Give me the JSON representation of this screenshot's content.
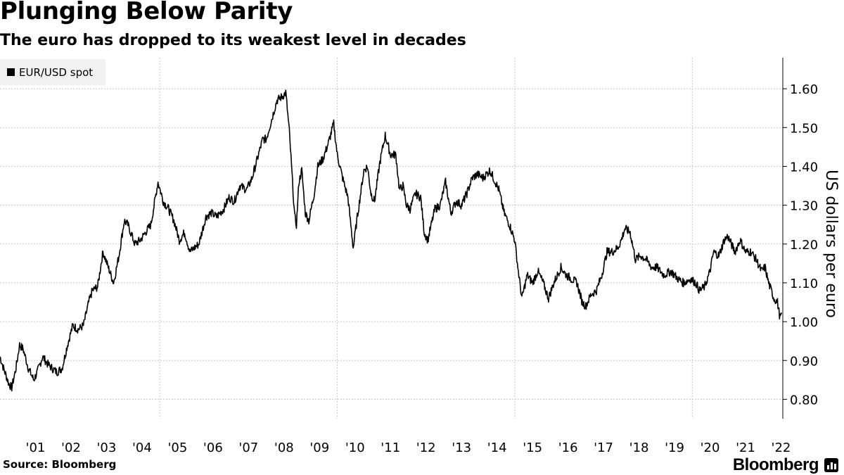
{
  "title": "Plunging Below Parity",
  "subtitle": "The euro has dropped to its weakest level in decades",
  "source": "Source: Bloomberg",
  "brand": "Bloomberg",
  "colors": {
    "line": "#000000",
    "grid": "#c8c8c8",
    "legend_bg": "#f2f2f2"
  },
  "chart_data": {
    "type": "line",
    "title": "Plunging Below Parity",
    "subtitle": "The euro has dropped to its weakest level in decades",
    "ylabel": "US dollars per euro",
    "xlabel": "",
    "ylim": [
      0.75,
      1.68
    ],
    "xlim": [
      2000.5,
      2022.55
    ],
    "y_ticks": [
      0.8,
      0.9,
      1.0,
      1.1,
      1.2,
      1.3,
      1.4,
      1.5,
      1.6
    ],
    "y_tick_labels": [
      "0.80",
      "0.90",
      "1.00",
      "1.10",
      "1.20",
      "1.30",
      "1.40",
      "1.50",
      "1.60"
    ],
    "x_tick_years": [
      2001,
      2002,
      2003,
      2004,
      2005,
      2006,
      2007,
      2008,
      2009,
      2010,
      2011,
      2012,
      2013,
      2014,
      2015,
      2016,
      2017,
      2018,
      2019,
      2020,
      2021,
      2022
    ],
    "x_tick_labels": [
      "'01",
      "'02",
      "'03",
      "'04",
      "'05",
      "'06",
      "'07",
      "'08",
      "'09",
      "'10",
      "'11",
      "'12",
      "'13",
      "'14",
      "'15",
      "'16",
      "'17",
      "'18",
      "'19",
      "'20",
      "'21",
      "'22"
    ],
    "gridlines": true,
    "legend": "top-left",
    "series": [
      {
        "name": "EUR/USD spot",
        "points": [
          [
            2000.5,
            0.91
          ],
          [
            2000.6,
            0.88
          ],
          [
            2000.75,
            0.84
          ],
          [
            2000.83,
            0.83
          ],
          [
            2000.95,
            0.88
          ],
          [
            2001.05,
            0.94
          ],
          [
            2001.15,
            0.93
          ],
          [
            2001.3,
            0.88
          ],
          [
            2001.45,
            0.85
          ],
          [
            2001.55,
            0.87
          ],
          [
            2001.7,
            0.91
          ],
          [
            2001.85,
            0.89
          ],
          [
            2001.97,
            0.88
          ],
          [
            2002.1,
            0.87
          ],
          [
            2002.25,
            0.88
          ],
          [
            2002.4,
            0.94
          ],
          [
            2002.55,
            0.99
          ],
          [
            2002.7,
            0.98
          ],
          [
            2002.85,
            0.99
          ],
          [
            2003.0,
            1.05
          ],
          [
            2003.1,
            1.08
          ],
          [
            2003.25,
            1.09
          ],
          [
            2003.4,
            1.18
          ],
          [
            2003.55,
            1.14
          ],
          [
            2003.7,
            1.1
          ],
          [
            2003.85,
            1.17
          ],
          [
            2004.0,
            1.26
          ],
          [
            2004.1,
            1.25
          ],
          [
            2004.3,
            1.2
          ],
          [
            2004.45,
            1.21
          ],
          [
            2004.6,
            1.23
          ],
          [
            2004.75,
            1.25
          ],
          [
            2004.95,
            1.36
          ],
          [
            2005.1,
            1.31
          ],
          [
            2005.25,
            1.29
          ],
          [
            2005.4,
            1.26
          ],
          [
            2005.55,
            1.21
          ],
          [
            2005.7,
            1.23
          ],
          [
            2005.85,
            1.18
          ],
          [
            2005.97,
            1.19
          ],
          [
            2006.1,
            1.2
          ],
          [
            2006.3,
            1.27
          ],
          [
            2006.45,
            1.28
          ],
          [
            2006.6,
            1.27
          ],
          [
            2006.8,
            1.29
          ],
          [
            2006.95,
            1.32
          ],
          [
            2007.1,
            1.31
          ],
          [
            2007.25,
            1.35
          ],
          [
            2007.45,
            1.34
          ],
          [
            2007.6,
            1.37
          ],
          [
            2007.75,
            1.42
          ],
          [
            2007.9,
            1.47
          ],
          [
            2008.0,
            1.47
          ],
          [
            2008.15,
            1.52
          ],
          [
            2008.3,
            1.57
          ],
          [
            2008.45,
            1.58
          ],
          [
            2008.55,
            1.59
          ],
          [
            2008.65,
            1.49
          ],
          [
            2008.8,
            1.27
          ],
          [
            2008.85,
            1.25
          ],
          [
            2008.92,
            1.36
          ],
          [
            2009.0,
            1.39
          ],
          [
            2009.1,
            1.28
          ],
          [
            2009.2,
            1.26
          ],
          [
            2009.35,
            1.33
          ],
          [
            2009.45,
            1.4
          ],
          [
            2009.6,
            1.42
          ],
          [
            2009.75,
            1.46
          ],
          [
            2009.9,
            1.51
          ],
          [
            2010.0,
            1.43
          ],
          [
            2010.15,
            1.37
          ],
          [
            2010.3,
            1.32
          ],
          [
            2010.45,
            1.19
          ],
          [
            2010.55,
            1.26
          ],
          [
            2010.75,
            1.39
          ],
          [
            2010.85,
            1.4
          ],
          [
            2010.95,
            1.33
          ],
          [
            2011.05,
            1.31
          ],
          [
            2011.2,
            1.41
          ],
          [
            2011.35,
            1.48
          ],
          [
            2011.5,
            1.43
          ],
          [
            2011.65,
            1.43
          ],
          [
            2011.75,
            1.34
          ],
          [
            2011.85,
            1.35
          ],
          [
            2011.95,
            1.3
          ],
          [
            2012.05,
            1.29
          ],
          [
            2012.2,
            1.33
          ],
          [
            2012.35,
            1.32
          ],
          [
            2012.45,
            1.23
          ],
          [
            2012.55,
            1.21
          ],
          [
            2012.75,
            1.29
          ],
          [
            2012.9,
            1.3
          ],
          [
            2013.05,
            1.36
          ],
          [
            2013.2,
            1.28
          ],
          [
            2013.35,
            1.31
          ],
          [
            2013.5,
            1.3
          ],
          [
            2013.65,
            1.33
          ],
          [
            2013.8,
            1.37
          ],
          [
            2013.95,
            1.38
          ],
          [
            2014.1,
            1.37
          ],
          [
            2014.3,
            1.39
          ],
          [
            2014.45,
            1.36
          ],
          [
            2014.55,
            1.34
          ],
          [
            2014.7,
            1.28
          ],
          [
            2014.85,
            1.25
          ],
          [
            2015.0,
            1.21
          ],
          [
            2015.1,
            1.13
          ],
          [
            2015.2,
            1.06
          ],
          [
            2015.35,
            1.12
          ],
          [
            2015.5,
            1.1
          ],
          [
            2015.65,
            1.13
          ],
          [
            2015.8,
            1.1
          ],
          [
            2015.95,
            1.06
          ],
          [
            2016.1,
            1.1
          ],
          [
            2016.3,
            1.14
          ],
          [
            2016.45,
            1.12
          ],
          [
            2016.6,
            1.11
          ],
          [
            2016.75,
            1.1
          ],
          [
            2016.9,
            1.05
          ],
          [
            2017.0,
            1.04
          ],
          [
            2017.15,
            1.07
          ],
          [
            2017.3,
            1.08
          ],
          [
            2017.45,
            1.12
          ],
          [
            2017.6,
            1.18
          ],
          [
            2017.75,
            1.18
          ],
          [
            2017.9,
            1.19
          ],
          [
            2018.0,
            1.21
          ],
          [
            2018.1,
            1.24
          ],
          [
            2018.25,
            1.23
          ],
          [
            2018.4,
            1.16
          ],
          [
            2018.55,
            1.17
          ],
          [
            2018.7,
            1.16
          ],
          [
            2018.85,
            1.14
          ],
          [
            2019.0,
            1.14
          ],
          [
            2019.2,
            1.12
          ],
          [
            2019.4,
            1.13
          ],
          [
            2019.6,
            1.11
          ],
          [
            2019.75,
            1.1
          ],
          [
            2019.95,
            1.11
          ],
          [
            2020.1,
            1.1
          ],
          [
            2020.2,
            1.08
          ],
          [
            2020.35,
            1.09
          ],
          [
            2020.5,
            1.13
          ],
          [
            2020.6,
            1.18
          ],
          [
            2020.75,
            1.17
          ],
          [
            2020.9,
            1.21
          ],
          [
            2021.0,
            1.22
          ],
          [
            2021.2,
            1.18
          ],
          [
            2021.35,
            1.21
          ],
          [
            2021.5,
            1.18
          ],
          [
            2021.65,
            1.18
          ],
          [
            2021.8,
            1.16
          ],
          [
            2021.95,
            1.13
          ],
          [
            2022.05,
            1.14
          ],
          [
            2022.15,
            1.1
          ],
          [
            2022.3,
            1.06
          ],
          [
            2022.4,
            1.05
          ],
          [
            2022.47,
            1.01
          ],
          [
            2022.52,
            1.02
          ]
        ]
      }
    ]
  }
}
